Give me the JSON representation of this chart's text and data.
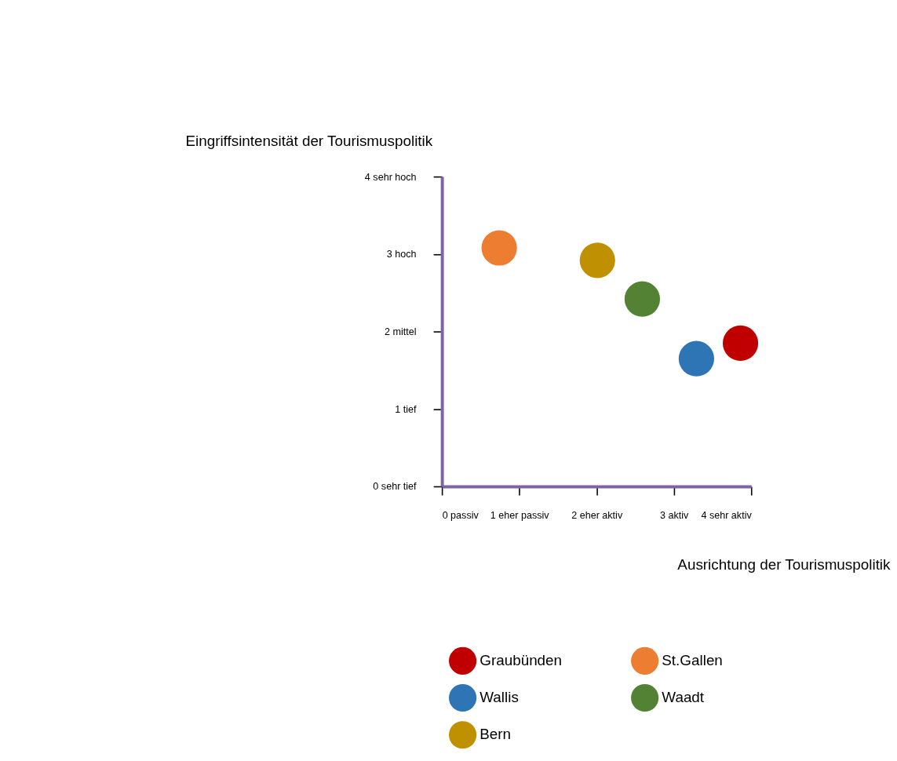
{
  "chart_data": {
    "type": "scatter",
    "xlabel": "Ausrichtung der Tourismuspolitik",
    "ylabel": "Eingriffsintensität der Tourismuspolitik",
    "xlim": [
      0,
      4
    ],
    "ylim": [
      0,
      4
    ],
    "xticks": [
      {
        "value": 0,
        "label": "0 passiv"
      },
      {
        "value": 1,
        "label": "1 eher passiv"
      },
      {
        "value": 2,
        "label": "2 eher aktiv"
      },
      {
        "value": 3,
        "label": "3 aktiv"
      },
      {
        "value": 4,
        "label": "4 sehr aktiv"
      }
    ],
    "yticks": [
      {
        "value": 0,
        "label": "0 sehr tief"
      },
      {
        "value": 1,
        "label": "1 tief"
      },
      {
        "value": 2,
        "label": "2 mittel"
      },
      {
        "value": 3,
        "label": "3 hoch"
      },
      {
        "value": 4,
        "label": "4 sehr hoch"
      }
    ],
    "marker": "circle",
    "grid": false,
    "legend": "bottom",
    "series": [
      {
        "name": "Graubünden",
        "color": "#c00000",
        "x": [
          3.86
        ],
        "values": [
          1.85
        ]
      },
      {
        "name": "St.Gallen",
        "color": "#ed7d31",
        "x": [
          0.74
        ],
        "values": [
          3.08
        ]
      },
      {
        "name": "Wallis",
        "color": "#2e75b6",
        "x": [
          3.29
        ],
        "values": [
          1.65
        ]
      },
      {
        "name": "Waadt",
        "color": "#548235",
        "x": [
          2.59
        ],
        "values": [
          2.42
        ]
      },
      {
        "name": "Bern",
        "color": "#bf9000",
        "x": [
          2.01
        ],
        "values": [
          2.92
        ]
      }
    ]
  }
}
